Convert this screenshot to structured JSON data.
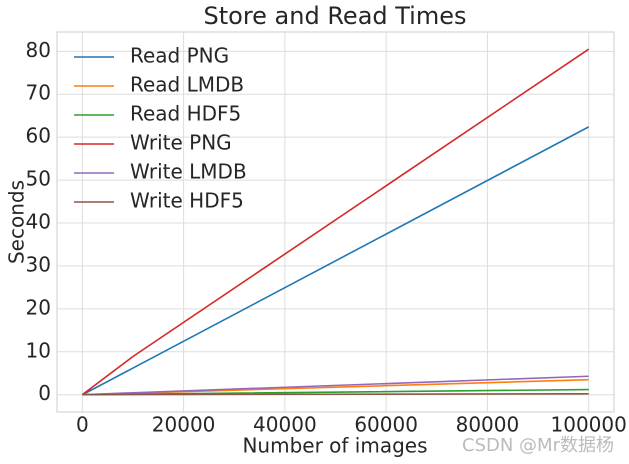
{
  "chart_data": {
    "type": "line",
    "title": "Store and Read Times",
    "x_label": "Number of images",
    "y_label": "Seconds",
    "x": [
      10,
      100,
      1000,
      10000,
      100000
    ],
    "series": [
      {
        "name": "Read PNG",
        "color": "#1f77b4",
        "values": [
          0.006,
          0.06,
          0.6,
          6.2,
          62.4
        ]
      },
      {
        "name": "Read LMDB",
        "color": "#ff7f0e",
        "values": [
          0.0004,
          0.004,
          0.035,
          0.35,
          3.5
        ]
      },
      {
        "name": "Read HDF5",
        "color": "#2ca02c",
        "values": [
          0.0002,
          0.002,
          0.012,
          0.12,
          1.2
        ]
      },
      {
        "name": "Write PNG",
        "color": "#d62728",
        "values": [
          0.01,
          0.1,
          0.9,
          8.9,
          80.5
        ]
      },
      {
        "name": "Write LMDB",
        "color": "#9467bd",
        "values": [
          0.0005,
          0.005,
          0.045,
          0.45,
          4.3
        ]
      },
      {
        "name": "Write HDF5",
        "color": "#8c564b",
        "values": [
          0.0001,
          0.001,
          0.003,
          0.03,
          0.2
        ]
      }
    ],
    "xlim": [
      -5000,
      105000
    ],
    "ylim": [
      -4.03,
      84.5
    ],
    "xticks": [
      0,
      20000,
      40000,
      60000,
      80000,
      100000
    ],
    "yticks": [
      0,
      10,
      20,
      30,
      40,
      50,
      60,
      70,
      80
    ],
    "grid": true,
    "legend": "upper left",
    "watermark": "CSDN @Mr数据杨"
  }
}
